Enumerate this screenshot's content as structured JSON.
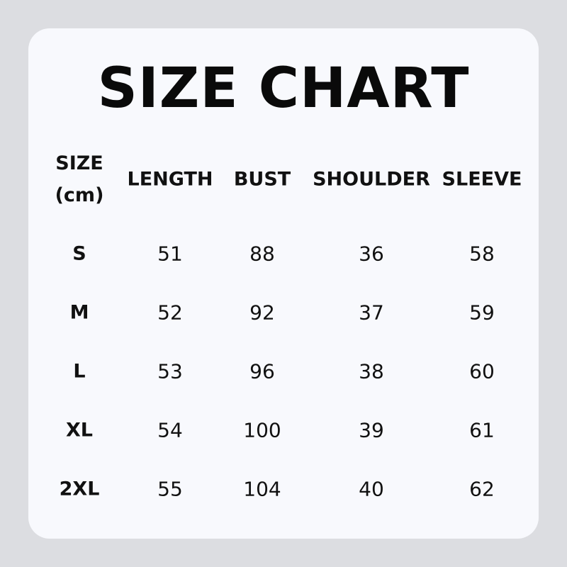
{
  "title": "SIZE CHART",
  "table": {
    "size_header_line1": "SIZE",
    "size_header_line2": "(cm)",
    "columns": [
      "LENGTH",
      "BUST",
      "SHOULDER",
      "SLEEVE"
    ],
    "rows": [
      {
        "size": "S",
        "values": [
          "51",
          "88",
          "36",
          "58"
        ]
      },
      {
        "size": "M",
        "values": [
          "52",
          "92",
          "37",
          "59"
        ]
      },
      {
        "size": "L",
        "values": [
          "53",
          "96",
          "38",
          "60"
        ]
      },
      {
        "size": "XL",
        "values": [
          "54",
          "100",
          "39",
          "61"
        ]
      },
      {
        "size": "2XL",
        "values": [
          "55",
          "104",
          "40",
          "62"
        ]
      }
    ]
  },
  "colors": {
    "background": "#dcdde1",
    "card": "#f8f9fd",
    "text": "#111111"
  }
}
